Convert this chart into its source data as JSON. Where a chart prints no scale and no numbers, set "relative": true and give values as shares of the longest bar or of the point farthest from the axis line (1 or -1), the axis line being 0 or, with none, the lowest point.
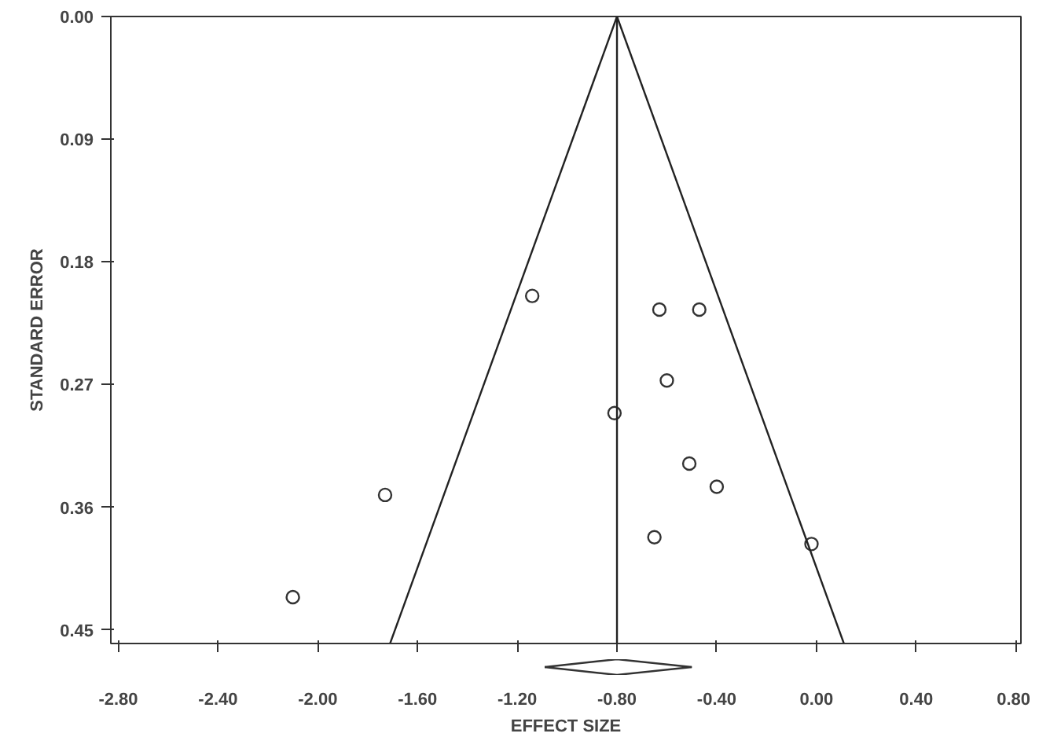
{
  "chart_data": [
    {
      "type": "scatter",
      "ylabel": "STANDARD ERROR",
      "xlim": [
        -2.83,
        0.82
      ],
      "ylim": [
        0.46,
        0
      ],
      "xticks": [
        {
          "value": -2.8,
          "label": null
        },
        {
          "value": -2.4,
          "label": null
        },
        {
          "value": -2.0,
          "label": null
        },
        {
          "value": -1.6,
          "label": null
        },
        {
          "value": -1.2,
          "label": null
        },
        {
          "value": -0.8,
          "label": null
        },
        {
          "value": -0.4,
          "label": null
        },
        {
          "value": 0.0,
          "label": null
        },
        {
          "value": 0.4,
          "label": null
        },
        {
          "value": 0.8,
          "label": null
        }
      ],
      "yticks": [
        {
          "value": 0,
          "label": "0.00"
        },
        0.09,
        0.18,
        0.27,
        0.36,
        0.45
      ],
      "tick_labels": "y",
      "grid": false,
      "marker": "circle",
      "ref_lines": [
        {
          "axis": "x",
          "value": -0.8,
          "color": "#222222"
        }
      ],
      "series": [
        {
          "color": "#333333",
          "x": [
            -1.14,
            -0.63,
            -0.47,
            -0.6,
            -0.81,
            -0.51,
            -0.4,
            -1.73,
            -0.65,
            -0.02,
            -2.1
          ],
          "values": [
            0.205,
            0.215,
            0.215,
            0.267,
            0.291,
            0.328,
            0.345,
            0.351,
            0.382,
            0.387,
            0.426
          ]
        },
        {
          "type": "line",
          "marker": "none",
          "color": "#222222",
          "x": [
            -0.8,
            -1.71
          ],
          "values": [
            0,
            0.46
          ]
        },
        {
          "type": "line",
          "marker": "none",
          "color": "#222222",
          "x": [
            -0.8,
            0.11
          ],
          "values": [
            0,
            0.46
          ]
        }
      ]
    },
    {
      "type": "line",
      "relative": true,
      "xlabel": "EFFECT SIZE",
      "xlim": [
        -2.83,
        0.82
      ],
      "xticks": [
        {
          "value": -2.8,
          "label": "-2.80"
        },
        {
          "value": -2.4,
          "label": "-2.40"
        },
        {
          "value": -2.0,
          "label": "-2.00"
        },
        {
          "value": -1.6,
          "label": "-1.60"
        },
        {
          "value": -1.2,
          "label": "-1.20"
        },
        {
          "value": -0.8,
          "label": "-0.80"
        },
        {
          "value": -0.4,
          "label": "-0.40"
        },
        {
          "value": 0.0,
          "label": "0.00"
        },
        {
          "value": 0.4,
          "label": "0.40"
        },
        {
          "value": 0.8,
          "label": "0.80"
        }
      ],
      "tick_labels": "x",
      "grid": false,
      "marker": "none",
      "series": [
        {
          "color": "#333333",
          "x": [
            -1.09,
            -0.8,
            -0.5
          ],
          "values": [
            0.5,
            1,
            0.5
          ]
        },
        {
          "color": "#333333",
          "x": [
            -1.09,
            -0.8,
            -0.5
          ],
          "values": [
            0.5,
            0,
            0.5
          ]
        }
      ]
    }
  ]
}
